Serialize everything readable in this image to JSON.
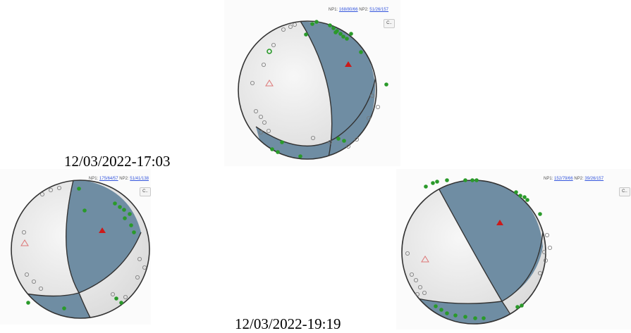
{
  "panels": [
    {
      "np1_prefix": "NP1:",
      "np1_value": "168/80/66",
      "np2_prefix": "NP2:",
      "np2_value": "51/26/157",
      "button_label": "C.."
    },
    {
      "np1_prefix": "NP1:",
      "np1_value": "175/64/57",
      "np2_prefix": "NP2:",
      "np2_value": "51/41/138",
      "button_label": "C.."
    },
    {
      "np1_prefix": "NP1:",
      "np1_value": "152/79/66",
      "np2_prefix": "NP2:",
      "np2_value": "39/26/157",
      "button_label": "C.."
    }
  ],
  "captions": {
    "first": "12/03/2022-17:03",
    "second": "12/03/2022-19:19"
  },
  "colors": {
    "compressional": "#6f8da3",
    "dilatational": "#ececec",
    "up_marker": "#2a9a2a",
    "axis_p": "#cc1a1a",
    "axis_t": "#dd7777"
  },
  "icons": [
    "filled-triangle-icon",
    "hollow-triangle-icon",
    "filled-circle-icon",
    "hollow-circle-icon"
  ]
}
